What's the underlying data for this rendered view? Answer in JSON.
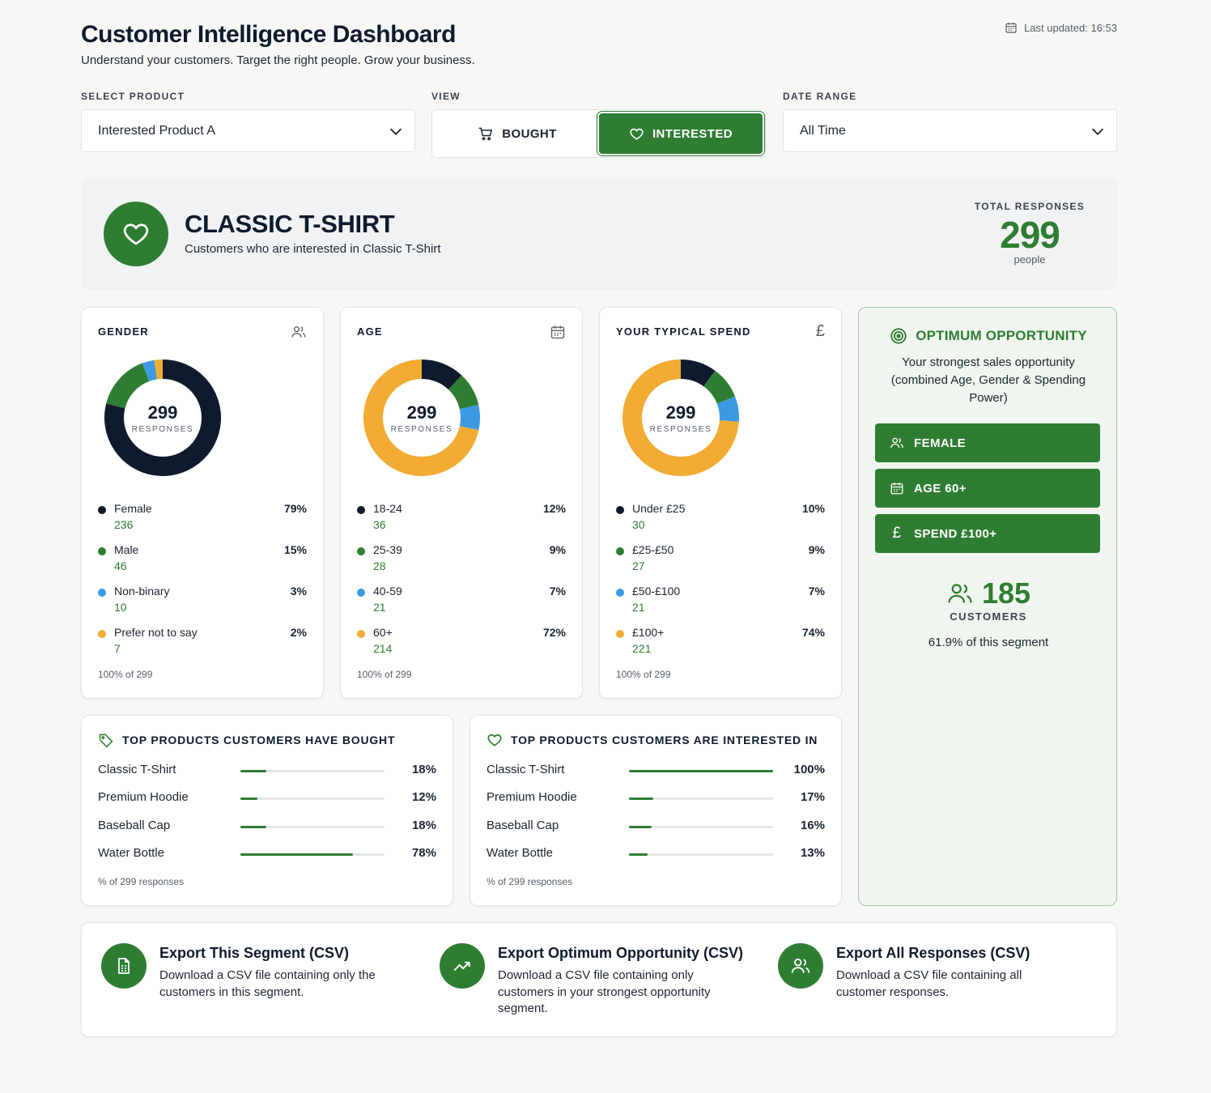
{
  "header": {
    "title": "Customer Intelligence Dashboard",
    "subtitle": "Understand your customers. Target the right people. Grow your business.",
    "last_updated": "Last updated: 16:53"
  },
  "filters": {
    "product_label": "SELECT PRODUCT",
    "product_value": "Interested Product A",
    "view_label": "VIEW",
    "view_bought": "BOUGHT",
    "view_interested": "INTERESTED",
    "view_selected": "INTERESTED",
    "date_label": "DATE RANGE",
    "date_value": "All Time"
  },
  "hero": {
    "title": "CLASSIC T-SHIRT",
    "subtitle": "Customers who are interested in Classic T-Shirt",
    "total_label": "TOTAL RESPONSES",
    "total_value": "299",
    "total_unit": "people"
  },
  "colors": {
    "accent": "#2f7d32",
    "navy": "#0f1b2d",
    "blue": "#3b9ae1",
    "orange": "#f2ab33"
  },
  "gender": {
    "title": "GENDER",
    "icon": "users-icon",
    "center_value": "299",
    "center_label": "RESPONSES",
    "footer": "100% of 299",
    "items": [
      {
        "name": "Female",
        "count": "236",
        "pct": "79%",
        "value": 236,
        "color": "#0f1b2d"
      },
      {
        "name": "Male",
        "count": "46",
        "pct": "15%",
        "value": 46,
        "color": "#2f7d32"
      },
      {
        "name": "Non-binary",
        "count": "10",
        "pct": "3%",
        "value": 10,
        "color": "#3b9ae1"
      },
      {
        "name": "Prefer not to say",
        "count": "7",
        "pct": "2%",
        "value": 7,
        "color": "#f2ab33"
      }
    ]
  },
  "age": {
    "title": "AGE",
    "icon": "calendar-icon",
    "center_value": "299",
    "center_label": "RESPONSES",
    "footer": "100% of 299",
    "items": [
      {
        "name": "18-24",
        "count": "36",
        "pct": "12%",
        "value": 36,
        "color": "#0f1b2d"
      },
      {
        "name": "25-39",
        "count": "28",
        "pct": "9%",
        "value": 28,
        "color": "#2f7d32"
      },
      {
        "name": "40-59",
        "count": "21",
        "pct": "7%",
        "value": 21,
        "color": "#3b9ae1"
      },
      {
        "name": "60+",
        "count": "214",
        "pct": "72%",
        "value": 214,
        "color": "#f2ab33"
      }
    ]
  },
  "spend": {
    "title": "YOUR TYPICAL SPEND",
    "icon": "pound-icon",
    "center_value": "299",
    "center_label": "RESPONSES",
    "footer": "100% of 299",
    "items": [
      {
        "name": "Under £25",
        "count": "30",
        "pct": "10%",
        "value": 30,
        "color": "#0f1b2d"
      },
      {
        "name": "£25-£50",
        "count": "27",
        "pct": "9%",
        "value": 27,
        "color": "#2f7d32"
      },
      {
        "name": "£50-£100",
        "count": "21",
        "pct": "7%",
        "value": 21,
        "color": "#3b9ae1"
      },
      {
        "name": "£100+",
        "count": "221",
        "pct": "74%",
        "value": 221,
        "color": "#f2ab33"
      }
    ]
  },
  "opportunity": {
    "title": "OPTIMUM OPPORTUNITY",
    "subtitle": "Your strongest sales opportunity (combined Age, Gender & Spending Power)",
    "tags": [
      {
        "label": "FEMALE",
        "icon": "users-icon"
      },
      {
        "label": "AGE 60+",
        "icon": "calendar-icon"
      },
      {
        "label": "SPEND £100+",
        "icon": "pound-icon"
      }
    ],
    "count": "185",
    "count_label": "CUSTOMERS",
    "segment_pct": "61.9% of this segment"
  },
  "top_bought": {
    "title": "TOP PRODUCTS CUSTOMERS HAVE BOUGHT",
    "footer": "% of 299 responses",
    "items": [
      {
        "name": "Classic T-Shirt",
        "pct": "18%",
        "value": 18
      },
      {
        "name": "Premium Hoodie",
        "pct": "12%",
        "value": 12
      },
      {
        "name": "Baseball Cap",
        "pct": "18%",
        "value": 18
      },
      {
        "name": "Water Bottle",
        "pct": "78%",
        "value": 78
      }
    ]
  },
  "top_interested": {
    "title": "TOP PRODUCTS CUSTOMERS ARE INTERESTED IN",
    "footer": "% of 299 responses",
    "items": [
      {
        "name": "Classic T-Shirt",
        "pct": "100%",
        "value": 100
      },
      {
        "name": "Premium Hoodie",
        "pct": "17%",
        "value": 17
      },
      {
        "name": "Baseball Cap",
        "pct": "16%",
        "value": 16
      },
      {
        "name": "Water Bottle",
        "pct": "13%",
        "value": 13
      }
    ]
  },
  "exports": [
    {
      "title": "Export This Segment (CSV)",
      "desc": "Download a CSV file containing only the customers in this segment.",
      "icon": "file-icon"
    },
    {
      "title": "Export Optimum Opportunity (CSV)",
      "desc": "Download a CSV file containing only customers in your strongest opportunity segment.",
      "icon": "trend-up-icon"
    },
    {
      "title": "Export All Responses (CSV)",
      "desc": "Download a CSV file containing all customer responses.",
      "icon": "users-icon"
    }
  ]
}
